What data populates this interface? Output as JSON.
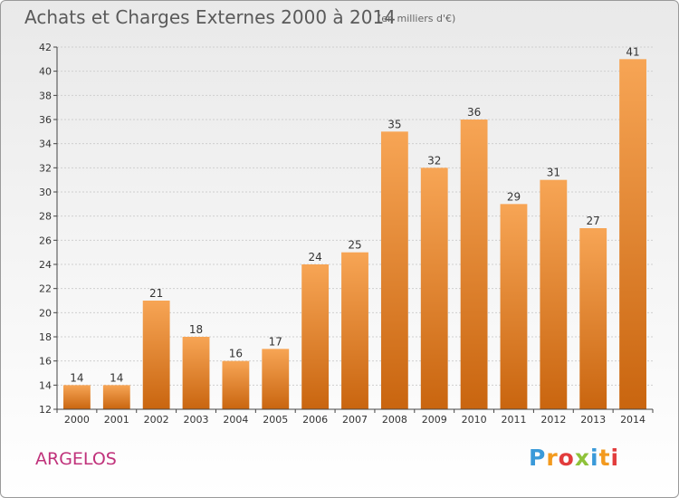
{
  "title": "Achats et Charges Externes 2000 à 2014",
  "subtitle": "(en milliers d'€)",
  "commune": "ARGELOS",
  "logo": {
    "text": "Proxiti",
    "colors": [
      "#3a9ad9",
      "#f39a1e",
      "#e23c3c",
      "#8fc23a",
      "#3a9ad9",
      "#f39a1e",
      "#e23c3c"
    ]
  },
  "colors": {
    "bar_light": "#f7a555",
    "bar_dark": "#c9650f",
    "grid": "#cfcfcf",
    "axis": "#444444",
    "text": "#333333"
  },
  "chart_data": {
    "type": "bar",
    "title": "Achats et Charges Externes 2000 à 2014",
    "subtitle": "(en milliers d'€)",
    "categories": [
      "2000",
      "2001",
      "2002",
      "2003",
      "2004",
      "2005",
      "2006",
      "2007",
      "2008",
      "2009",
      "2010",
      "2011",
      "2012",
      "2013",
      "2014"
    ],
    "values": [
      14,
      14,
      21,
      18,
      16,
      17,
      24,
      25,
      35,
      32,
      36,
      29,
      31,
      27,
      41
    ],
    "ylim": [
      12,
      42
    ],
    "yticks": [
      12,
      14,
      16,
      18,
      20,
      22,
      24,
      26,
      28,
      30,
      32,
      34,
      36,
      38,
      40,
      42
    ],
    "grid": true,
    "data_labels": true
  }
}
